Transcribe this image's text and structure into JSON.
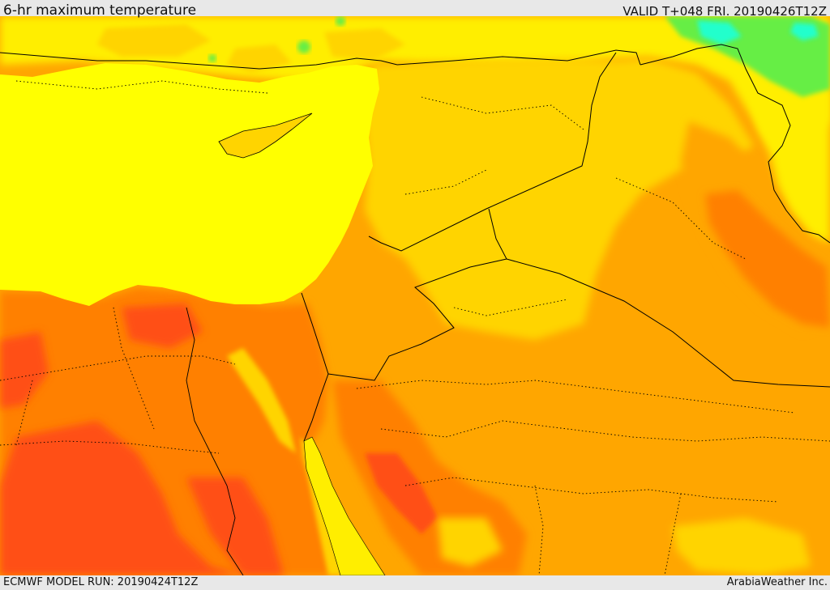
{
  "header": {
    "title": "6-hr maximum temperature",
    "valid": "VALID T+048 FRI. 20190426T12Z"
  },
  "footer": {
    "model_run": "ECMWF MODEL RUN: 20190424T12Z",
    "credit": "ArabiaWeather Inc."
  },
  "colors": {
    "sea": "#ffff00",
    "light_yellow": "#ffee00",
    "yellow_orange": "#ffd400",
    "orange": "#ffa600",
    "dark_orange": "#ff8000",
    "red_orange": "#ff5014",
    "green": "#66ee44",
    "cyan": "#22ffcc",
    "border": "#000000"
  }
}
